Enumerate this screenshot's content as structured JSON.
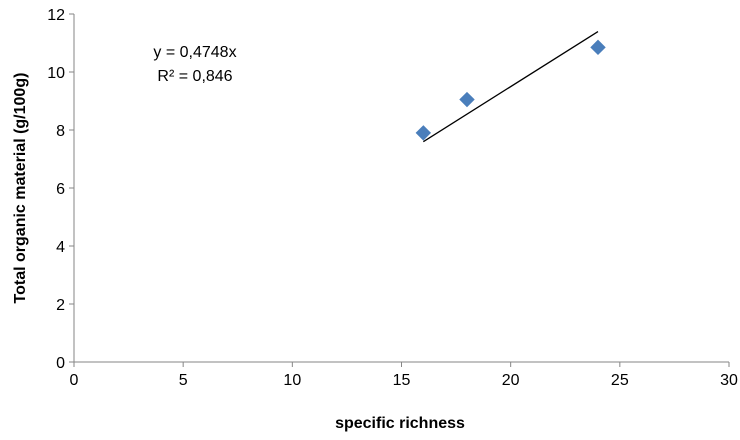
{
  "chart_data": {
    "type": "scatter",
    "title": "",
    "xlabel": "specific richness",
    "ylabel": "Total organic material (g/100g)",
    "xlim": [
      0,
      30
    ],
    "ylim": [
      0,
      12
    ],
    "x_ticks": [
      0,
      5,
      10,
      15,
      20,
      25,
      30
    ],
    "y_ticks": [
      0,
      2,
      4,
      6,
      8,
      10,
      12
    ],
    "grid": false,
    "legend": "none",
    "series": [
      {
        "color": "#4a7ebb",
        "marker": "diamond",
        "x": [
          16,
          18,
          24
        ],
        "y": [
          7.9,
          9.05,
          10.85
        ]
      }
    ],
    "trendline": {
      "slope": 0.4748,
      "x_range": [
        16,
        24
      ],
      "color": "#000000"
    },
    "annotations": {
      "equation": "y = 0,4748x",
      "r_squared": "R² = 0,846"
    }
  }
}
